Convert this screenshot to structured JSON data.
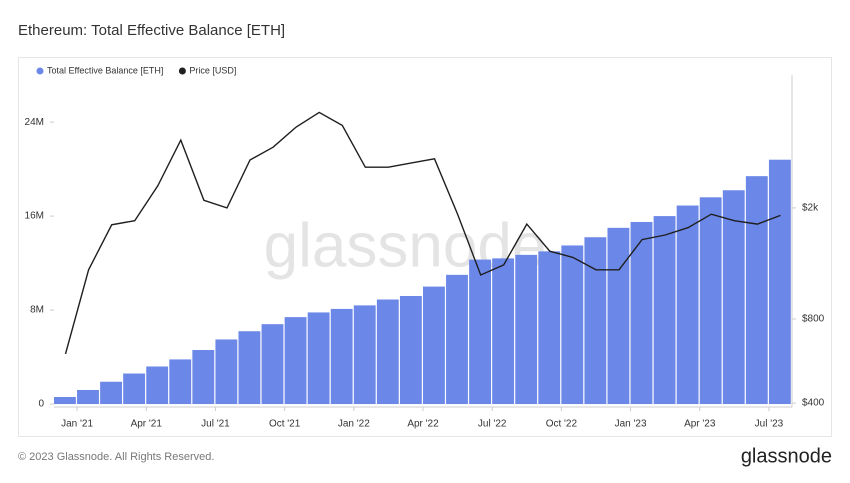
{
  "chart_data": {
    "type": "bar-line",
    "title": "Ethereum: Total Effective Balance [ETH]",
    "watermark": "glassnode",
    "footer": "© 2023 Glassnode. All Rights Reserved.",
    "logo": "glassnode",
    "x": [
      "2020-12",
      "2021-01",
      "2021-02",
      "2021-03",
      "2021-04",
      "2021-05",
      "2021-06",
      "2021-07",
      "2021-08",
      "2021-09",
      "2021-10",
      "2021-11",
      "2021-12",
      "2022-01",
      "2022-02",
      "2022-03",
      "2022-04",
      "2022-05",
      "2022-06",
      "2022-07",
      "2022-08",
      "2022-09",
      "2022-10",
      "2022-11",
      "2022-12",
      "2023-01",
      "2023-02",
      "2023-03",
      "2023-04",
      "2023-05",
      "2023-06",
      "2023-07"
    ],
    "xlim": [
      "2020-12",
      "2023-08"
    ],
    "xticks": [
      {
        "value": "2021-01",
        "label": "Jan '21"
      },
      {
        "value": "2021-04",
        "label": "Apr '21"
      },
      {
        "value": "2021-07",
        "label": "Jul '21"
      },
      {
        "value": "2021-10",
        "label": "Oct '21"
      },
      {
        "value": "2022-01",
        "label": "Jan '22"
      },
      {
        "value": "2022-04",
        "label": "Apr '22"
      },
      {
        "value": "2022-07",
        "label": "Jul '22"
      },
      {
        "value": "2022-10",
        "label": "Oct '22"
      },
      {
        "value": "2023-01",
        "label": "Jan '23"
      },
      {
        "value": "2023-04",
        "label": "Apr '23"
      },
      {
        "value": "2023-07",
        "label": "Jul '23"
      }
    ],
    "ylim": [
      -250000,
      27500000
    ],
    "yticks": [
      0,
      {
        "value": 8000000,
        "label": "8M"
      },
      {
        "value": 16000000,
        "label": "16M"
      },
      {
        "value": 24000000,
        "label": "24M"
      }
    ],
    "y2lim": [
      387,
      5700
    ],
    "y2scale": "log",
    "y2ticks": [
      {
        "value": 400,
        "label": "$400"
      },
      {
        "value": 800,
        "label": "$800"
      },
      {
        "value": 2000,
        "label": "$2k"
      }
    ],
    "legend": "top-left",
    "series": [
      {
        "name": "Total Effective Balance [ETH]",
        "kind": "bar",
        "color": "#6b87e8",
        "values": [
          600000,
          1200000,
          1900000,
          2600000,
          3200000,
          3800000,
          4600000,
          5500000,
          6200000,
          6800000,
          7400000,
          7800000,
          8100000,
          8400000,
          8900000,
          9200000,
          10000000,
          11000000,
          12300000,
          12400000,
          12700000,
          13000000,
          13500000,
          14200000,
          15000000,
          15500000,
          16000000,
          16900000,
          17600000,
          18200000,
          19400000,
          20800000
        ]
      },
      {
        "name": "Price [USD]",
        "kind": "line",
        "color": "#1f1f1f",
        "axis": "y2",
        "values": [
          600,
          1200,
          1740,
          1800,
          2400,
          3500,
          2130,
          2000,
          2970,
          3300,
          3900,
          4400,
          3950,
          2800,
          2800,
          2900,
          3000,
          1900,
          1150,
          1250,
          1750,
          1400,
          1330,
          1200,
          1200,
          1540,
          1600,
          1700,
          1900,
          1800,
          1750,
          1880
        ]
      }
    ]
  }
}
